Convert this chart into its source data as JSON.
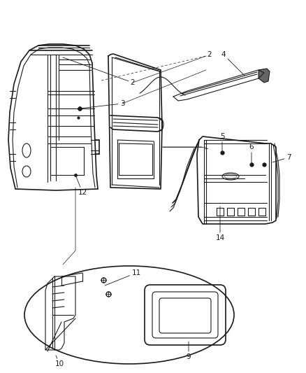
{
  "bg_color": "#ffffff",
  "lc": "#1a1a1a",
  "fig_width": 4.38,
  "fig_height": 5.33,
  "dpi": 100
}
